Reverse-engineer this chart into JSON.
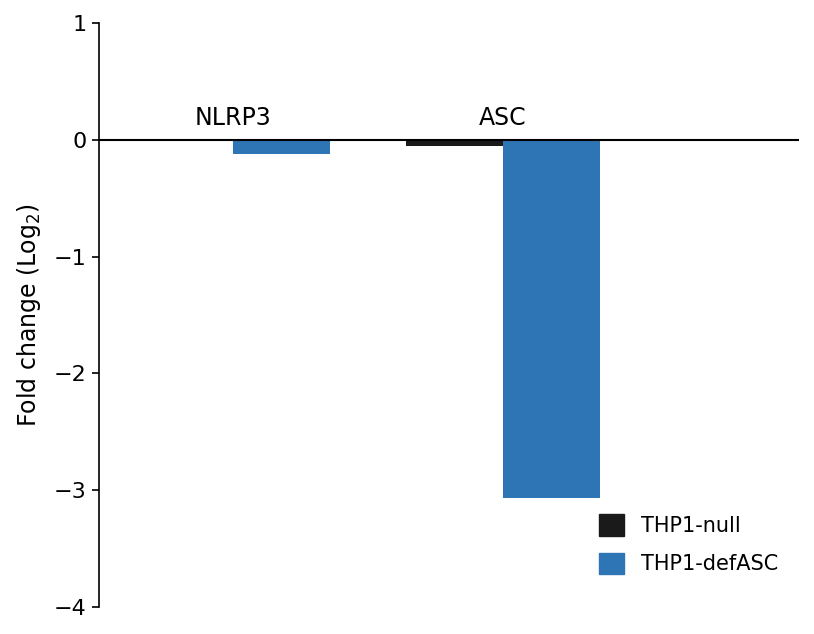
{
  "groups": [
    "NLRP3",
    "ASC"
  ],
  "series": [
    {
      "name": "THP1-null",
      "color": "#1a1a1a",
      "values": [
        0.0,
        -0.05
      ]
    },
    {
      "name": "THP1-defASC",
      "color": "#2E75B6",
      "values": [
        -0.12,
        -3.07
      ]
    }
  ],
  "ylim": [
    -4,
    1
  ],
  "yticks": [
    -4,
    -3,
    -2,
    -1,
    0,
    1
  ],
  "bar_width": 0.18,
  "background_color": "#ffffff",
  "legend_labels": [
    "THP1-null",
    "THP1-defASC"
  ],
  "legend_colors": [
    "#1a1a1a",
    "#2E75B6"
  ],
  "label_fontsize": 17,
  "tick_fontsize": 16,
  "legend_fontsize": 15,
  "group_label_fontsize": 17,
  "group_positions": [
    0.35,
    0.85
  ],
  "xlim": [
    0.1,
    1.4
  ]
}
